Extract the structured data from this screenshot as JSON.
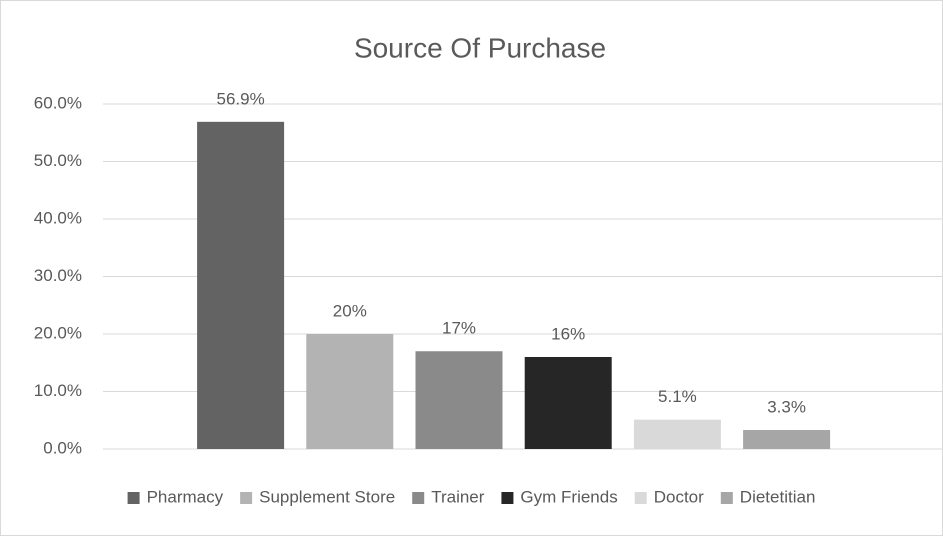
{
  "chart_data": {
    "type": "bar",
    "title": "Source Of Purchase",
    "categories": [
      "Pharmacy",
      "Supplement Store",
      "Trainer",
      "Gym Friends",
      "Doctor",
      "Dietetitian"
    ],
    "values": [
      56.9,
      20,
      17,
      16,
      5.1,
      3.3
    ],
    "value_labels": [
      "56.9%",
      "20%",
      "17%",
      "16%",
      "5.1%",
      "3.3%"
    ],
    "colors": [
      "#636363",
      "#b3b3b3",
      "#8a8a8a",
      "#262626",
      "#d9d9d9",
      "#a6a6a6"
    ],
    "ylim": [
      0,
      60
    ],
    "yticks": [
      {
        "value": 0,
        "label": "0.0%"
      },
      {
        "value": 10,
        "label": "10.0%"
      },
      {
        "value": 20,
        "label": "20.0%"
      },
      {
        "value": 30,
        "label": "30.0%"
      },
      {
        "value": 40,
        "label": "40.0%"
      },
      {
        "value": 50,
        "label": "50.0%"
      },
      {
        "value": 60,
        "label": "60.0%"
      }
    ],
    "grid": true,
    "legend": "bottom"
  }
}
